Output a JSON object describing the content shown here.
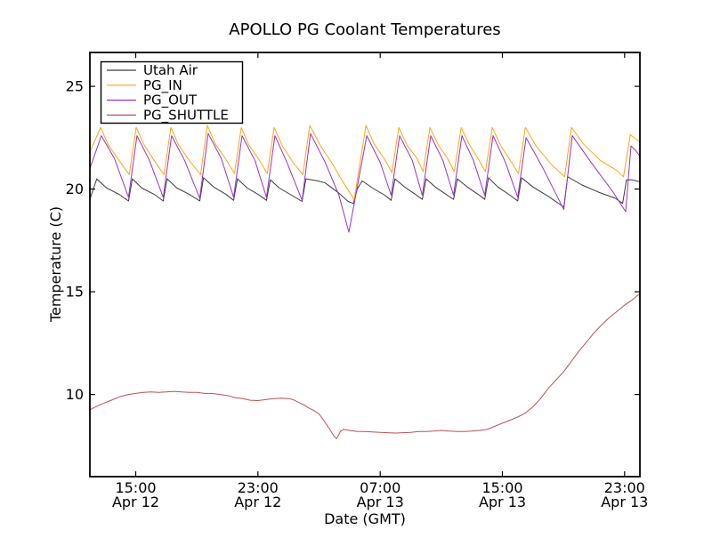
{
  "figure": {
    "background": "#ffffff",
    "axis_color": "#000000"
  },
  "chart_data": {
    "type": "line",
    "title": "APOLLO PG Coolant Temperatures",
    "xlabel": "Date (GMT)",
    "ylabel": "Temperature (C)",
    "x_unit": "hours since Apr 12 12:00 GMT",
    "xlim": [
      0,
      36
    ],
    "ylim": [
      6.0,
      26.65
    ],
    "grid": false,
    "legend_position": "upper left",
    "x_ticks": [
      {
        "pos": 3,
        "time": "15:00",
        "date": "Apr 12"
      },
      {
        "pos": 11,
        "time": "23:00",
        "date": "Apr 12"
      },
      {
        "pos": 19,
        "time": "07:00",
        "date": "Apr 13"
      },
      {
        "pos": 27,
        "time": "15:00",
        "date": "Apr 13"
      },
      {
        "pos": 35,
        "time": "23:00",
        "date": "Apr 13"
      }
    ],
    "y_ticks": [
      10,
      15,
      20,
      25
    ],
    "series": [
      {
        "name": "Utah Air",
        "color": "#3a3a3a",
        "points": [
          [
            0,
            19.5
          ],
          [
            0.45,
            20.5
          ],
          [
            1.1,
            20.05
          ],
          [
            1.9,
            19.75
          ],
          [
            2.53,
            19.42
          ],
          [
            2.78,
            20.5
          ],
          [
            3.4,
            20.05
          ],
          [
            4.2,
            19.75
          ],
          [
            4.8,
            19.42
          ],
          [
            5.05,
            20.5
          ],
          [
            5.7,
            20.05
          ],
          [
            6.5,
            19.75
          ],
          [
            7.19,
            19.42
          ],
          [
            7.44,
            20.55
          ],
          [
            8.1,
            20.1
          ],
          [
            8.9,
            19.75
          ],
          [
            9.41,
            19.45
          ],
          [
            9.66,
            20.5
          ],
          [
            10.3,
            20.05
          ],
          [
            11.0,
            19.75
          ],
          [
            11.56,
            19.45
          ],
          [
            11.81,
            20.45
          ],
          [
            12.4,
            20.05
          ],
          [
            13.2,
            19.7
          ],
          [
            13.89,
            19.4
          ],
          [
            14.14,
            20.5
          ],
          [
            14.9,
            20.4
          ],
          [
            15.4,
            20.3
          ],
          [
            16.3,
            19.8
          ],
          [
            16.9,
            19.4
          ],
          [
            17.25,
            19.3
          ],
          [
            17.5,
            20.0
          ],
          [
            17.82,
            20.4
          ],
          [
            18.5,
            20.05
          ],
          [
            19.3,
            19.7
          ],
          [
            19.72,
            19.45
          ],
          [
            19.97,
            20.5
          ],
          [
            20.6,
            20.1
          ],
          [
            21.3,
            19.75
          ],
          [
            21.76,
            19.5
          ],
          [
            22.01,
            20.5
          ],
          [
            22.6,
            20.1
          ],
          [
            23.3,
            19.75
          ],
          [
            23.8,
            19.5
          ],
          [
            24.05,
            20.5
          ],
          [
            24.7,
            20.1
          ],
          [
            25.4,
            19.75
          ],
          [
            25.84,
            19.5
          ],
          [
            26.09,
            20.55
          ],
          [
            26.7,
            20.1
          ],
          [
            27.5,
            19.7
          ],
          [
            28.0,
            19.42
          ],
          [
            28.25,
            20.55
          ],
          [
            29.0,
            20.1
          ],
          [
            30.0,
            19.65
          ],
          [
            31.02,
            19.12
          ],
          [
            31.27,
            20.6
          ],
          [
            32.2,
            20.2
          ],
          [
            33.3,
            19.85
          ],
          [
            34.4,
            19.55
          ],
          [
            34.87,
            19.3
          ],
          [
            35.12,
            20.45
          ],
          [
            35.5,
            20.45
          ],
          [
            36.0,
            20.35
          ]
        ]
      },
      {
        "name": "PG_IN",
        "color": "#ffa515",
        "points": [
          [
            0,
            21.8
          ],
          [
            0.7,
            23.0
          ],
          [
            1.2,
            22.15
          ],
          [
            1.9,
            21.4
          ],
          [
            2.58,
            20.7
          ],
          [
            3.03,
            23.0
          ],
          [
            3.55,
            22.15
          ],
          [
            4.2,
            21.4
          ],
          [
            4.85,
            20.7
          ],
          [
            5.3,
            23.0
          ],
          [
            5.8,
            22.15
          ],
          [
            6.5,
            21.4
          ],
          [
            7.24,
            20.7
          ],
          [
            7.69,
            23.1
          ],
          [
            8.2,
            22.2
          ],
          [
            8.9,
            21.45
          ],
          [
            9.46,
            20.75
          ],
          [
            9.91,
            23.0
          ],
          [
            10.4,
            22.15
          ],
          [
            11.1,
            21.4
          ],
          [
            11.61,
            20.75
          ],
          [
            12.06,
            23.0
          ],
          [
            12.6,
            22.1
          ],
          [
            13.3,
            21.3
          ],
          [
            13.94,
            20.7
          ],
          [
            14.39,
            23.1
          ],
          [
            15.1,
            22.1
          ],
          [
            15.9,
            21.2
          ],
          [
            16.6,
            20.3
          ],
          [
            17.3,
            19.5
          ],
          [
            18.07,
            23.1
          ],
          [
            18.6,
            22.2
          ],
          [
            19.3,
            21.45
          ],
          [
            19.77,
            20.8
          ],
          [
            20.22,
            23.0
          ],
          [
            20.75,
            22.15
          ],
          [
            21.4,
            21.5
          ],
          [
            21.81,
            20.85
          ],
          [
            22.26,
            23.0
          ],
          [
            22.8,
            22.15
          ],
          [
            23.4,
            21.5
          ],
          [
            23.85,
            20.85
          ],
          [
            24.3,
            23.0
          ],
          [
            24.85,
            22.15
          ],
          [
            25.4,
            21.5
          ],
          [
            25.89,
            20.85
          ],
          [
            26.34,
            23.0
          ],
          [
            26.9,
            22.1
          ],
          [
            27.6,
            21.3
          ],
          [
            28.05,
            20.75
          ],
          [
            28.5,
            23.0
          ],
          [
            29.2,
            22.1
          ],
          [
            30.2,
            21.2
          ],
          [
            31.07,
            20.6
          ],
          [
            31.52,
            23.0
          ],
          [
            32.3,
            22.2
          ],
          [
            33.4,
            21.4
          ],
          [
            34.5,
            20.9
          ],
          [
            34.92,
            20.6
          ],
          [
            35.37,
            22.65
          ],
          [
            35.7,
            22.45
          ],
          [
            36.0,
            22.3
          ]
        ]
      },
      {
        "name": "PG_OUT",
        "color": "#9932cc",
        "points": [
          [
            0,
            21.0
          ],
          [
            0.75,
            22.6
          ],
          [
            1.6,
            21.5
          ],
          [
            2.53,
            19.6
          ],
          [
            3.08,
            22.6
          ],
          [
            3.9,
            21.4
          ],
          [
            4.8,
            19.6
          ],
          [
            5.35,
            22.6
          ],
          [
            6.2,
            21.4
          ],
          [
            7.19,
            19.55
          ],
          [
            7.74,
            22.7
          ],
          [
            8.6,
            21.5
          ],
          [
            9.41,
            19.6
          ],
          [
            9.96,
            22.6
          ],
          [
            10.8,
            21.4
          ],
          [
            11.56,
            19.6
          ],
          [
            12.11,
            22.6
          ],
          [
            12.9,
            21.3
          ],
          [
            13.89,
            19.45
          ],
          [
            14.44,
            22.7
          ],
          [
            15.4,
            21.3
          ],
          [
            16.3,
            19.7
          ],
          [
            16.95,
            17.9
          ],
          [
            18.12,
            22.6
          ],
          [
            19.0,
            21.3
          ],
          [
            19.72,
            19.7
          ],
          [
            20.27,
            22.6
          ],
          [
            21.1,
            21.4
          ],
          [
            21.76,
            19.7
          ],
          [
            22.31,
            22.6
          ],
          [
            23.1,
            21.4
          ],
          [
            23.8,
            19.7
          ],
          [
            24.35,
            22.6
          ],
          [
            25.1,
            21.4
          ],
          [
            25.84,
            19.7
          ],
          [
            26.39,
            22.6
          ],
          [
            27.2,
            21.3
          ],
          [
            28.0,
            19.6
          ],
          [
            28.55,
            22.5
          ],
          [
            29.6,
            21.1
          ],
          [
            31.02,
            19.0
          ],
          [
            31.57,
            22.6
          ],
          [
            32.8,
            21.3
          ],
          [
            34.2,
            19.9
          ],
          [
            35.07,
            18.9
          ],
          [
            35.42,
            22.1
          ],
          [
            35.7,
            21.9
          ],
          [
            36.0,
            21.6
          ]
        ]
      },
      {
        "name": "PG_SHUTTLE",
        "color": "#c05050",
        "points": [
          [
            0,
            9.25
          ],
          [
            0.5,
            9.45
          ],
          [
            1.0,
            9.6
          ],
          [
            1.5,
            9.75
          ],
          [
            2.0,
            9.9
          ],
          [
            2.5,
            10.0
          ],
          [
            3.0,
            10.05
          ],
          [
            3.5,
            10.1
          ],
          [
            4.0,
            10.12
          ],
          [
            4.5,
            10.1
          ],
          [
            5.0,
            10.12
          ],
          [
            5.5,
            10.15
          ],
          [
            6.0,
            10.12
          ],
          [
            6.5,
            10.1
          ],
          [
            7.0,
            10.1
          ],
          [
            7.5,
            10.05
          ],
          [
            8.0,
            10.05
          ],
          [
            8.5,
            10.0
          ],
          [
            9.0,
            9.95
          ],
          [
            9.5,
            9.85
          ],
          [
            10.0,
            9.8
          ],
          [
            10.5,
            9.72
          ],
          [
            11.0,
            9.7
          ],
          [
            11.5,
            9.75
          ],
          [
            12.0,
            9.8
          ],
          [
            12.5,
            9.82
          ],
          [
            13.0,
            9.8
          ],
          [
            13.3,
            9.75
          ],
          [
            13.7,
            9.6
          ],
          [
            14.0,
            9.5
          ],
          [
            14.3,
            9.35
          ],
          [
            14.7,
            9.2
          ],
          [
            15.0,
            9.05
          ],
          [
            15.3,
            8.75
          ],
          [
            15.7,
            8.3
          ],
          [
            16.0,
            7.95
          ],
          [
            16.15,
            7.85
          ],
          [
            16.4,
            8.2
          ],
          [
            16.6,
            8.3
          ],
          [
            17.0,
            8.25
          ],
          [
            17.5,
            8.2
          ],
          [
            18.0,
            8.2
          ],
          [
            19.0,
            8.15
          ],
          [
            20.0,
            8.12
          ],
          [
            21.0,
            8.15
          ],
          [
            21.5,
            8.2
          ],
          [
            22.0,
            8.2
          ],
          [
            22.5,
            8.22
          ],
          [
            23.0,
            8.25
          ],
          [
            23.5,
            8.22
          ],
          [
            24.0,
            8.2
          ],
          [
            24.5,
            8.2
          ],
          [
            25.0,
            8.22
          ],
          [
            25.5,
            8.25
          ],
          [
            26.0,
            8.3
          ],
          [
            26.5,
            8.45
          ],
          [
            27.0,
            8.6
          ],
          [
            27.5,
            8.75
          ],
          [
            28.0,
            8.9
          ],
          [
            28.5,
            9.1
          ],
          [
            29.0,
            9.4
          ],
          [
            29.5,
            9.8
          ],
          [
            30.0,
            10.3
          ],
          [
            30.5,
            10.7
          ],
          [
            31.0,
            11.1
          ],
          [
            31.5,
            11.6
          ],
          [
            32.0,
            12.1
          ],
          [
            32.5,
            12.55
          ],
          [
            33.0,
            13.0
          ],
          [
            33.5,
            13.4
          ],
          [
            34.0,
            13.75
          ],
          [
            34.5,
            14.05
          ],
          [
            35.0,
            14.35
          ],
          [
            35.5,
            14.6
          ],
          [
            35.8,
            14.8
          ],
          [
            36.0,
            14.9
          ]
        ]
      }
    ]
  }
}
